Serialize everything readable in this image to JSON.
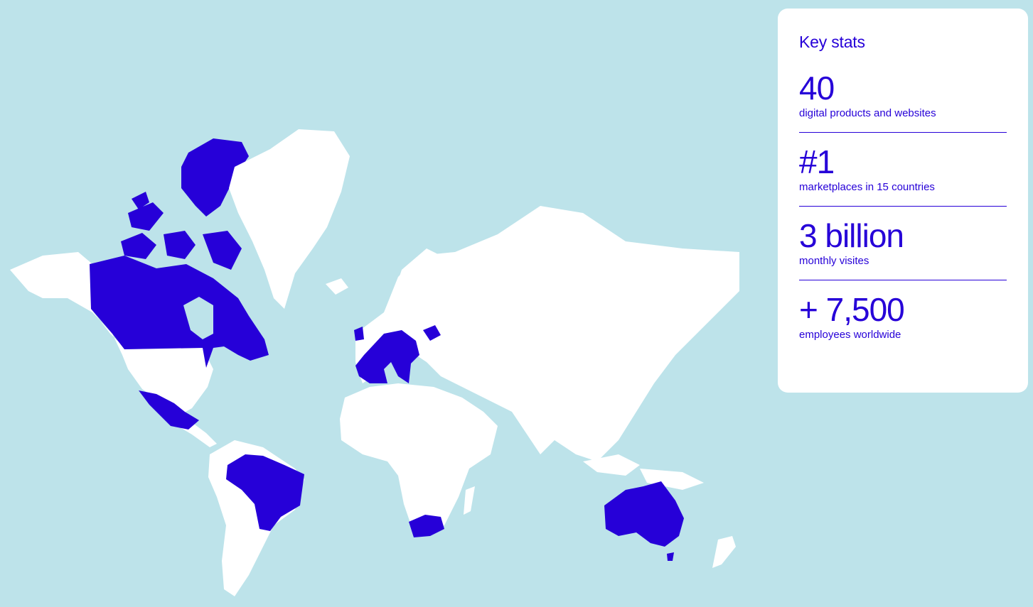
{
  "card": {
    "title": "Key stats",
    "stats": [
      {
        "value": "40",
        "label": "digital products and websites"
      },
      {
        "value": "#1",
        "label": "marketplaces in 15 countries"
      },
      {
        "value": "3 billion",
        "label": "monthly visites"
      },
      {
        "value": "+ 7,500",
        "label": "employees worldwide"
      }
    ]
  },
  "map": {
    "background_color": "#bde3ea",
    "land_color": "#ffffff",
    "highlight_color": "#2600d8"
  }
}
